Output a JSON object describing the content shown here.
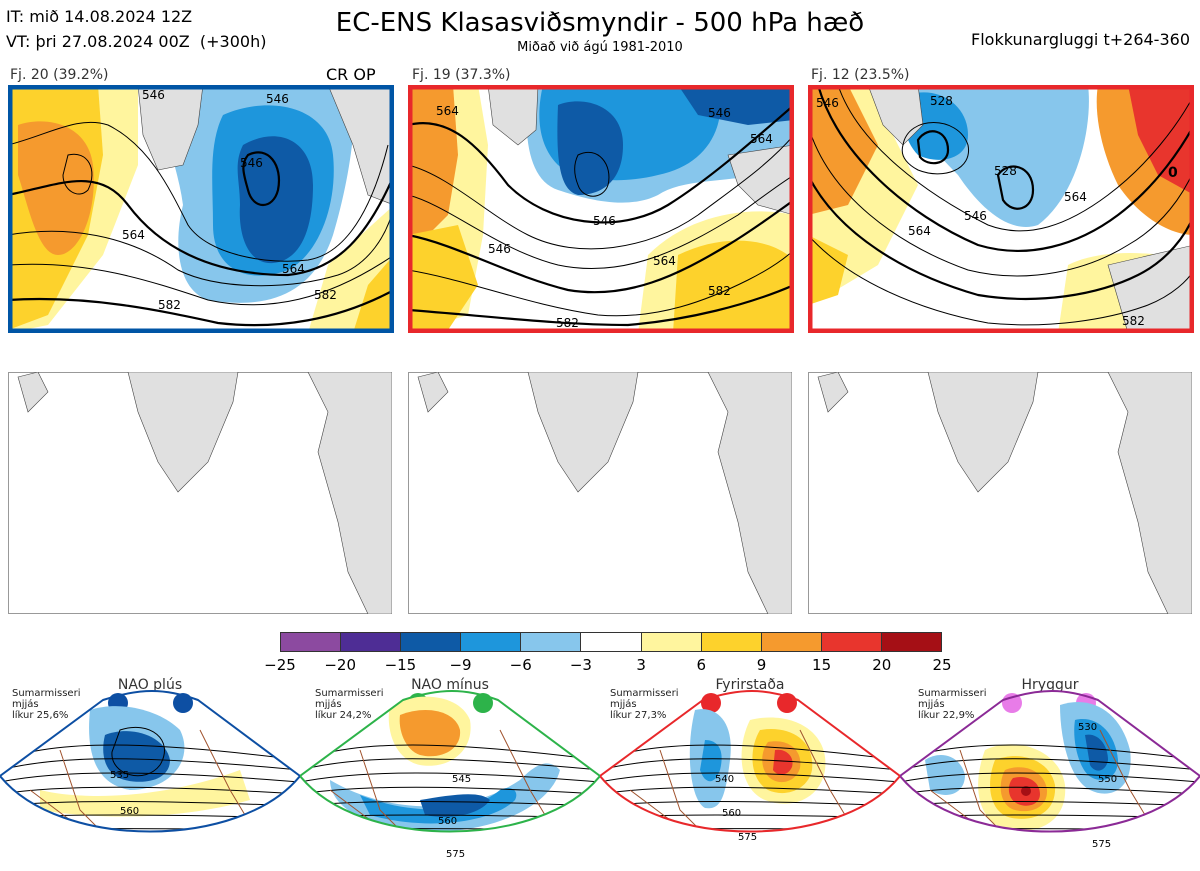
{
  "header": {
    "it_line": "IT: mið 14.08.2024 12Z",
    "vt_line": "VT: þri 27.08.2024 00Z  (+300h)",
    "title": "EC-ENS Klasasviðsmyndir - 500 hPa hæð",
    "subtitle": "Miðað við ágú 1981-2010",
    "window": "Flokkunargluggi t+264-360"
  },
  "clusters": [
    {
      "label": "Fj. 20 (39.2%)",
      "border_color": "#0055a5",
      "tag": "CR OP",
      "contours": [
        "546",
        "546",
        "546",
        "564",
        "564",
        "582",
        "582"
      ]
    },
    {
      "label": "Fj. 19 (37.3%)",
      "border_color": "#e8282b",
      "tag": "",
      "contours": [
        "546",
        "546",
        "546",
        "564",
        "564",
        "582",
        "582",
        "564"
      ]
    },
    {
      "label": "Fj. 12 (23.5%)",
      "border_color": "#e8282b",
      "tag": "",
      "contours": [
        "528",
        "546",
        "528",
        "546",
        "564",
        "564",
        "582",
        "0"
      ]
    }
  ],
  "colorbar": {
    "colors": [
      "#8c4aa0",
      "#4e2d95",
      "#0e5aa6",
      "#1e96dc",
      "#87c6ec",
      "#ffffff",
      "#fff59e",
      "#fdd22c",
      "#f59a2e",
      "#e8352d",
      "#a50f15"
    ],
    "ticks": [
      "−25",
      "−20",
      "−15",
      "−9",
      "−6",
      "−3",
      "3",
      "6",
      "9",
      "15",
      "20",
      "25"
    ]
  },
  "regimes": [
    {
      "name": "NAO plús",
      "season": "Sumarmisseri",
      "avg": "mjjás",
      "prob": "líkur 25,6%",
      "dot_color": "#0d4fa3",
      "border": "#0d4fa3",
      "contours": [
        "535",
        "560"
      ]
    },
    {
      "name": "NAO mínus",
      "season": "Sumarmisseri",
      "avg": "mjjás",
      "prob": "líkur 24,2%",
      "dot_color": "#2db34a",
      "border": "#2db34a",
      "contours": [
        "545",
        "560",
        "575"
      ]
    },
    {
      "name": "Fyrirstaða",
      "season": "Sumarmisseri",
      "avg": "mjjás",
      "prob": "líkur 27,3%",
      "dot_color": "#e8282b",
      "border": "#e8282b",
      "contours": [
        "540",
        "560",
        "575"
      ]
    },
    {
      "name": "Hryggur",
      "season": "Sumarmisseri",
      "avg": "mjjás",
      "prob": "líkur 22,9%",
      "dot_color": "#e87ce8",
      "border": "#8b2a96",
      "contours": [
        "530",
        "550",
        "575"
      ]
    }
  ]
}
